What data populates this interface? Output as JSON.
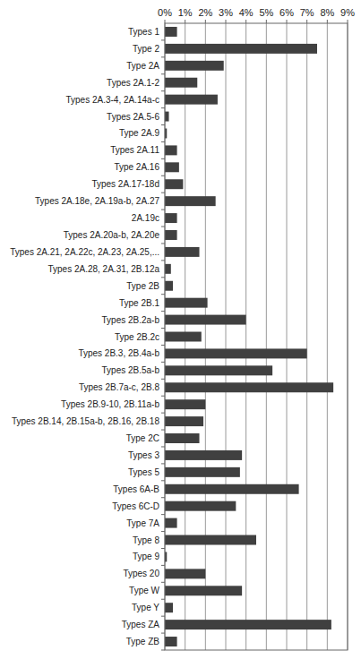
{
  "chart_data": {
    "type": "bar",
    "orientation": "horizontal",
    "categories": [
      "Types 1",
      "Type 2",
      "Type 2A",
      "Types 2A.1-2",
      "Types 2A.3-4, 2A.14a-c",
      "Types 2A.5-6",
      "Type 2A.9",
      "Types 2A.11",
      "Type 2A.16",
      "Types 2A.17-18d",
      "Types 2A.18e, 2A.19a-b, 2A.27",
      "2A.19c",
      "Types 2A.20a-b, 2A.20e",
      "Types 2A.21, 2A.22c, 2A.23, 2A.25,...",
      "Types 2A.28, 2A.31, 2B.12a",
      "Type 2B",
      "Type 2B.1",
      "Types 2B.2a-b",
      "Type 2B.2c",
      "Types 2B.3, 2B.4a-b",
      "Types 2B.5a-b",
      "Types 2B.7a-c, 2B.8",
      "Types 2B.9-10, 2B.11a-b",
      "Types 2B.14, 2B.15a-b, 2B.16, 2B.18",
      "Type 2C",
      "Types 3",
      "Types 5",
      "Types 6A-B",
      "Types 6C-D",
      "Type 7A",
      "Type 8",
      "Type 9",
      "Types 20",
      "Type W",
      "Type Y",
      "Types ZA",
      "Type ZB"
    ],
    "values": [
      0.6,
      7.5,
      2.9,
      1.6,
      2.6,
      0.2,
      0.1,
      0.6,
      0.7,
      0.9,
      2.5,
      0.6,
      0.6,
      1.7,
      0.3,
      0.4,
      2.1,
      4.0,
      1.8,
      7.0,
      5.3,
      8.3,
      2.0,
      1.9,
      1.7,
      3.8,
      3.7,
      6.6,
      3.5,
      0.6,
      4.5,
      0.1,
      2.0,
      3.8,
      0.4,
      8.2,
      0.6
    ],
    "color": "#404040",
    "xlim": [
      0,
      9
    ],
    "xticks": [
      {
        "value": 0,
        "label": "0%"
      },
      {
        "value": 1,
        "label": "1%"
      },
      {
        "value": 2,
        "label": "2%"
      },
      {
        "value": 3,
        "label": "3%"
      },
      {
        "value": 4,
        "label": "4%"
      },
      {
        "value": 5,
        "label": "5%"
      },
      {
        "value": 6,
        "label": "6%"
      },
      {
        "value": 7,
        "label": "7%"
      },
      {
        "value": 8,
        "label": "8%"
      },
      {
        "value": 9,
        "label": "9%"
      }
    ],
    "grid": true
  }
}
